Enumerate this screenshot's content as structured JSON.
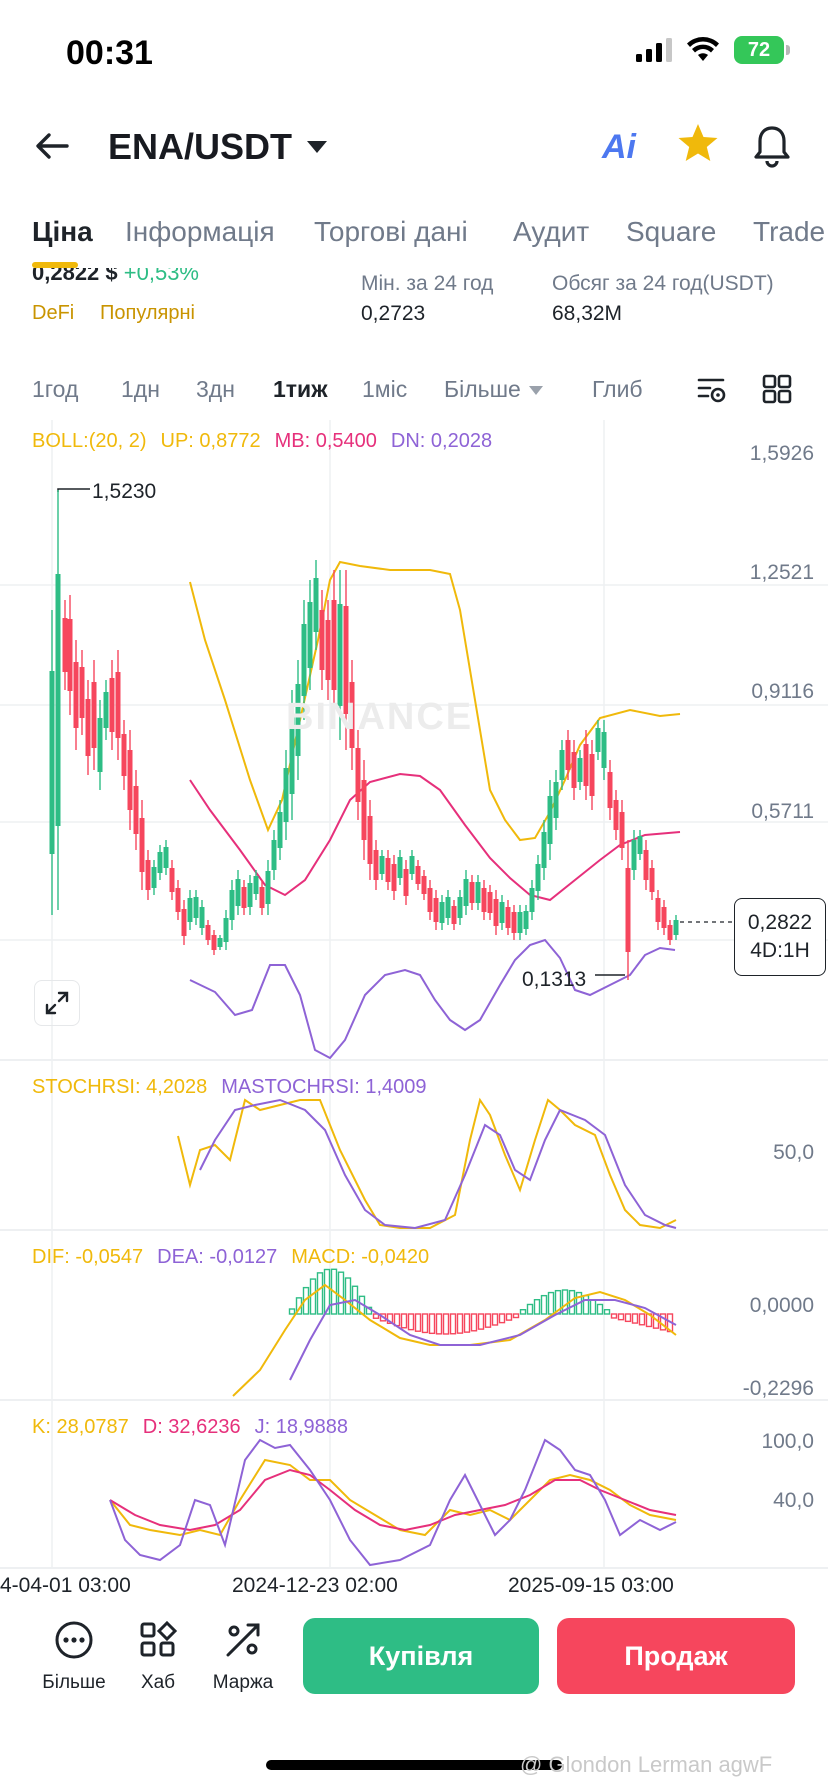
{
  "status_bar": {
    "time": "00:31",
    "battery": "72"
  },
  "header": {
    "pair": "ENA/USDT",
    "ai_label": "Ai"
  },
  "tabs": [
    {
      "label": "Ціна",
      "active": true
    },
    {
      "label": "Інформація"
    },
    {
      "label": "Торгові дані"
    },
    {
      "label": "Аудит"
    },
    {
      "label": "Square"
    },
    {
      "label": "Trade"
    }
  ],
  "info": {
    "price": "0,2822 $",
    "change": "+0,53%",
    "tags": [
      "DeFi",
      "Популярні"
    ],
    "low_label": "Мін. за 24 год",
    "low_value": "0,2723",
    "volume_label": "Обсяг за 24 год(USDT)",
    "volume_value": "68,32M"
  },
  "intervals": [
    "1год",
    "1дн",
    "3дн",
    "1тиж",
    "1міс",
    "Більше",
    "Глиб"
  ],
  "active_interval": "1тиж",
  "indicators": {
    "boll": {
      "name": "BOLL:(20, 2)",
      "up": "UP: 0,8772",
      "mb": "MB: 0,5400",
      "dn": "DN: 0,2028"
    },
    "stoch": {
      "k": "STOCHRSI: 4,2028",
      "ma": "MASTOCHRSI: 1,4009"
    },
    "macd": {
      "dif": "DIF: -0,0547",
      "dea": "DEA: -0,0127",
      "macd": "MACD: -0,0420"
    },
    "kdj": {
      "k": "K: 28,0787",
      "d": "D: 32,6236",
      "j": "J: 18,9888"
    }
  },
  "axes": {
    "price": [
      "1,5926",
      "1,2521",
      "0,9116",
      "0,5711"
    ],
    "stoch": [
      "50,0"
    ],
    "macd": [
      "0,0000",
      "-0,2296"
    ],
    "kdj": [
      "100,0",
      "40,0"
    ]
  },
  "chart_data": {
    "type": "candlestick",
    "current_price": "0,2822",
    "timeframe_label": "4D:1H",
    "high_marker": "1,5230",
    "low_marker": "0,1313",
    "watermark": "BINANCE",
    "x_labels": [
      "4-04-01 03:00",
      "2024-12-23 02:00",
      "2025-09-15 03:00"
    ],
    "colors": {
      "up": "#2ebd85",
      "down": "#f6465d",
      "boll_band": "#f0b90b",
      "boll_mid": "#e6307b",
      "boll_dn": "#8e63d6"
    }
  },
  "bottom": {
    "more": "Більше",
    "hub": "Хаб",
    "margin": "Маржа",
    "buy": "Купівля",
    "sell": "Продаж"
  },
  "credit": "@ Glondon Lerman agwF"
}
